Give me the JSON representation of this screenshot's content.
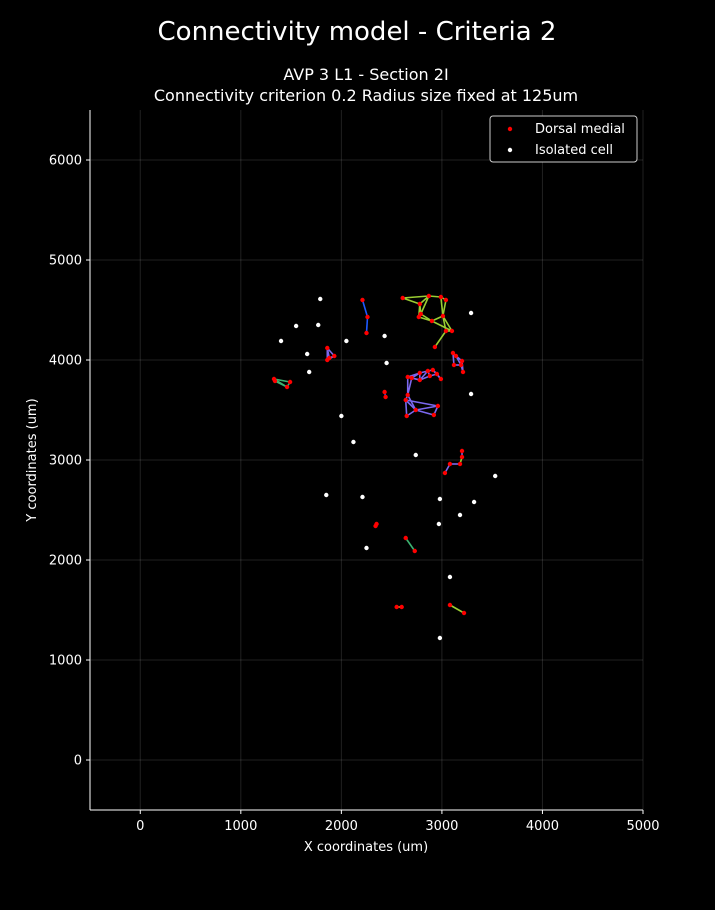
{
  "chart_data": {
    "type": "scatter",
    "suptitle": "Connectivity model - Criteria 2",
    "title_line1": "AVP 3 L1 - Section 2I",
    "title_line2": "Connectivity criterion 0.2  Radius size fixed at 125um",
    "xlabel": "X coordinates (um)",
    "ylabel": "Y coordinates (um)",
    "xlim": [
      -500,
      5000
    ],
    "ylim": [
      -500,
      6500
    ],
    "xticks": [
      0,
      1000,
      2000,
      3000,
      4000,
      5000
    ],
    "yticks": [
      0,
      1000,
      2000,
      3000,
      4000,
      5000,
      6000
    ],
    "grid": true,
    "legend_position": "top-right",
    "colors": {
      "dorsal_medial": "#ff0000",
      "isolated": "#ffffff",
      "edge_green": "#9acd32",
      "edge_purple": "#7b68ee",
      "edge_darkgreen": "#3cb371",
      "edge_blue": "#1e5aff"
    },
    "series": [
      {
        "name": "Dorsal medial",
        "color": "#ff0000",
        "x": [
          2210,
          2260,
          2250,
          2610,
          2780,
          2870,
          2990,
          3040,
          2770,
          2790,
          2900,
          3010,
          3100,
          3040,
          2930,
          1860,
          1880,
          1930,
          1860,
          1330,
          1340,
          1460,
          1490,
          3110,
          3140,
          3200,
          3210,
          3120,
          3190,
          2660,
          2780,
          2860,
          2910,
          2990,
          2700,
          2780,
          2880,
          2950,
          2660,
          2640,
          2960,
          2920,
          2740,
          2650,
          2430,
          2440,
          3200,
          3200,
          3180,
          3080,
          3030,
          2350,
          2340,
          2640,
          2730,
          2550,
          2600,
          3080,
          3220
        ],
        "y": [
          4600,
          4430,
          4270,
          4620,
          4560,
          4640,
          4630,
          4600,
          4430,
          4460,
          4390,
          4440,
          4290,
          4290,
          4130,
          4120,
          4020,
          4040,
          4000,
          3810,
          3790,
          3730,
          3780,
          4070,
          4040,
          3990,
          3880,
          3950,
          3950,
          3830,
          3870,
          3890,
          3900,
          3810,
          3820,
          3800,
          3840,
          3860,
          3650,
          3600,
          3540,
          3450,
          3500,
          3440,
          3680,
          3630,
          3090,
          3030,
          2960,
          2960,
          2870,
          2360,
          2340,
          2220,
          2090,
          1530,
          1530,
          1550,
          1470
        ]
      },
      {
        "name": "Isolated cell",
        "color": "#ffffff",
        "x": [
          1790,
          1550,
          1770,
          1400,
          2050,
          2430,
          3290,
          1660,
          1680,
          2450,
          2000,
          3290,
          2120,
          2740,
          3530,
          1850,
          2210,
          2980,
          3320,
          3180,
          2970,
          2250,
          3080,
          2980
        ],
        "y": [
          4610,
          4340,
          4350,
          4190,
          4190,
          4240,
          4470,
          4060,
          3880,
          3970,
          3440,
          3660,
          3180,
          3050,
          2840,
          2650,
          2630,
          2610,
          2580,
          2450,
          2360,
          2120,
          1830,
          1220
        ]
      }
    ],
    "edges": [
      {
        "color": "#9acd32",
        "pairs": [
          [
            3,
            4
          ],
          [
            3,
            5
          ],
          [
            4,
            5
          ],
          [
            5,
            6
          ],
          [
            6,
            7
          ],
          [
            4,
            8
          ],
          [
            4,
            9
          ],
          [
            8,
            9
          ],
          [
            9,
            10
          ],
          [
            8,
            10
          ],
          [
            10,
            11
          ],
          [
            6,
            11
          ],
          [
            7,
            11
          ],
          [
            11,
            12
          ],
          [
            11,
            13
          ],
          [
            12,
            13
          ],
          [
            10,
            12
          ],
          [
            13,
            14
          ],
          [
            5,
            9
          ],
          [
            55,
            56
          ],
          [
            57,
            58
          ],
          [
            47,
            48
          ]
        ]
      },
      {
        "color": "#7b68ee",
        "pairs": [
          [
            15,
            16
          ],
          [
            16,
            17
          ],
          [
            17,
            18
          ],
          [
            15,
            18
          ],
          [
            15,
            17
          ],
          [
            23,
            24
          ],
          [
            24,
            25
          ],
          [
            25,
            26
          ],
          [
            23,
            27
          ],
          [
            24,
            28
          ],
          [
            26,
            28
          ],
          [
            25,
            28
          ],
          [
            27,
            28
          ],
          [
            29,
            30
          ],
          [
            30,
            31
          ],
          [
            31,
            32
          ],
          [
            32,
            33
          ],
          [
            29,
            34
          ],
          [
            34,
            35
          ],
          [
            35,
            36
          ],
          [
            36,
            37
          ],
          [
            37,
            33
          ],
          [
            30,
            35
          ],
          [
            31,
            36
          ],
          [
            29,
            35
          ],
          [
            34,
            30
          ],
          [
            32,
            37
          ],
          [
            31,
            35
          ],
          [
            34,
            38
          ],
          [
            29,
            38
          ],
          [
            38,
            39
          ],
          [
            39,
            40
          ],
          [
            40,
            41
          ],
          [
            41,
            42
          ],
          [
            42,
            43
          ],
          [
            39,
            43
          ],
          [
            39,
            42
          ],
          [
            38,
            42
          ],
          [
            40,
            42
          ],
          [
            46,
            47
          ],
          [
            48,
            49
          ],
          [
            49,
            50
          ]
        ]
      },
      {
        "color": "#3cb371",
        "pairs": [
          [
            19,
            20
          ],
          [
            20,
            21
          ],
          [
            21,
            22
          ],
          [
            19,
            22
          ],
          [
            19,
            21
          ],
          [
            53,
            54
          ]
        ]
      },
      {
        "color": "#1e5aff",
        "pairs": [
          [
            0,
            1
          ],
          [
            1,
            2
          ],
          [
            44,
            45
          ],
          [
            51,
            52
          ]
        ]
      }
    ]
  }
}
